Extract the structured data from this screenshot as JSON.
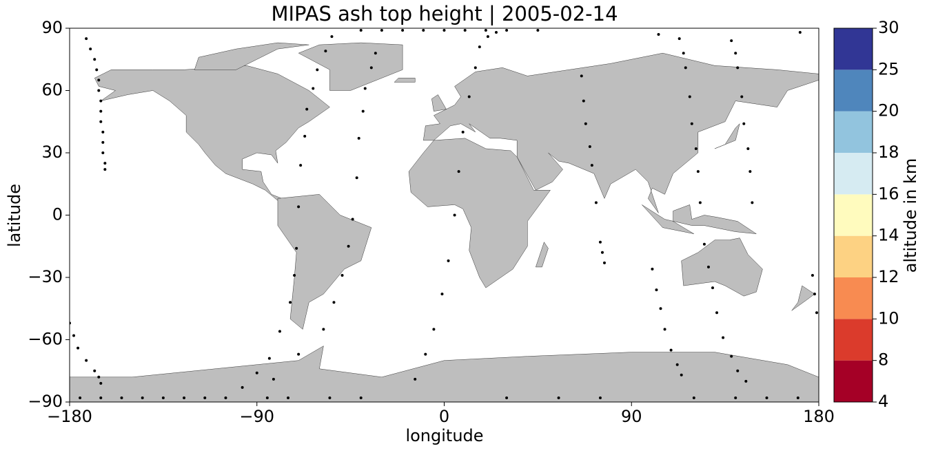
{
  "chart_data": {
    "type": "scatter",
    "title": "MIPAS ash top height | 2005-02-14",
    "xlabel": "longitude",
    "ylabel": "latitude",
    "xlim": [
      -180,
      180
    ],
    "ylim": [
      -90,
      90
    ],
    "xticks": [
      {
        "value": -180,
        "label": "−180"
      },
      {
        "value": -90,
        "label": "−90"
      },
      0,
      90,
      180
    ],
    "yticks": [
      {
        "value": -90,
        "label": "−90"
      },
      {
        "value": -60,
        "label": "−60"
      },
      {
        "value": -30,
        "label": "−30"
      },
      0,
      30,
      60,
      90
    ],
    "color": "#000000",
    "x": [
      -172,
      -170,
      -168,
      -167,
      -166,
      -166,
      -165,
      -165,
      -165,
      -164,
      -164,
      -164,
      -163,
      -163,
      -180,
      -178,
      -176,
      -172,
      -168,
      -166,
      -165,
      -97,
      -90,
      -84,
      -79,
      -74,
      -72,
      -71,
      -70,
      -69,
      -67,
      -66,
      -63,
      -61,
      -57,
      -54,
      -82,
      -70,
      -58,
      -53,
      -49,
      -46,
      -44,
      -42,
      -41,
      -39,
      -38,
      -35,
      -33,
      -14,
      -9,
      -5,
      -1,
      2,
      5,
      7,
      9,
      12,
      15,
      17,
      21,
      25,
      66,
      67,
      68,
      70,
      71,
      73,
      75,
      76,
      77,
      100,
      102,
      104,
      106,
      109,
      112,
      114,
      113,
      115,
      116,
      118,
      119,
      121,
      122,
      123,
      138,
      140,
      141,
      143,
      144,
      146,
      147,
      148,
      125,
      127,
      129,
      131,
      134,
      138,
      141,
      145,
      177,
      178,
      179,
      -175,
      -165,
      -155,
      -145,
      -135,
      -125,
      -115,
      -105,
      -85,
      -75,
      -55,
      -40,
      30,
      55,
      75,
      120,
      140,
      155,
      170,
      -40,
      -30,
      -20,
      -10,
      0,
      10,
      20,
      30,
      45,
      103,
      171
    ],
    "values": [
      85,
      80,
      75,
      70,
      65,
      60,
      55,
      50,
      45,
      40,
      35,
      30,
      25,
      22,
      -52,
      -58,
      -64,
      -70,
      -75,
      -78,
      -81,
      -83,
      -76,
      -69,
      -56,
      -42,
      -29,
      -16,
      4,
      24,
      38,
      51,
      61,
      70,
      79,
      86,
      -79,
      -67,
      -55,
      -42,
      -29,
      -15,
      -2,
      18,
      37,
      50,
      61,
      71,
      78,
      -79,
      -67,
      -55,
      -38,
      -22,
      0,
      21,
      40,
      57,
      71,
      81,
      86,
      88,
      67,
      55,
      44,
      33,
      24,
      6,
      -13,
      -18,
      -23,
      -26,
      -36,
      -45,
      -55,
      -65,
      -72,
      -77,
      85,
      78,
      71,
      57,
      44,
      32,
      21,
      6,
      84,
      78,
      71,
      57,
      44,
      32,
      21,
      6,
      -14,
      -25,
      -35,
      -47,
      -59,
      -68,
      -75,
      -80,
      -29,
      -38,
      -47,
      -88,
      -88,
      -88,
      -88,
      -88,
      -88,
      -88,
      -88,
      -88,
      -88,
      -88,
      -88,
      -88,
      -88,
      -88,
      -88,
      -88,
      -88,
      -88,
      89,
      89,
      89,
      89,
      89,
      89,
      89,
      89,
      89,
      87,
      88
    ],
    "colorbar": {
      "label": "altitude in km",
      "ticks": [
        4,
        8,
        10,
        12,
        14,
        16,
        18,
        20,
        25,
        30
      ],
      "colors": [
        "#a50026",
        "#db3b2c",
        "#f88b51",
        "#fdd283",
        "#fffbbe",
        "#d6ebf2",
        "#92c4de",
        "#4f86bc",
        "#313695"
      ]
    }
  }
}
